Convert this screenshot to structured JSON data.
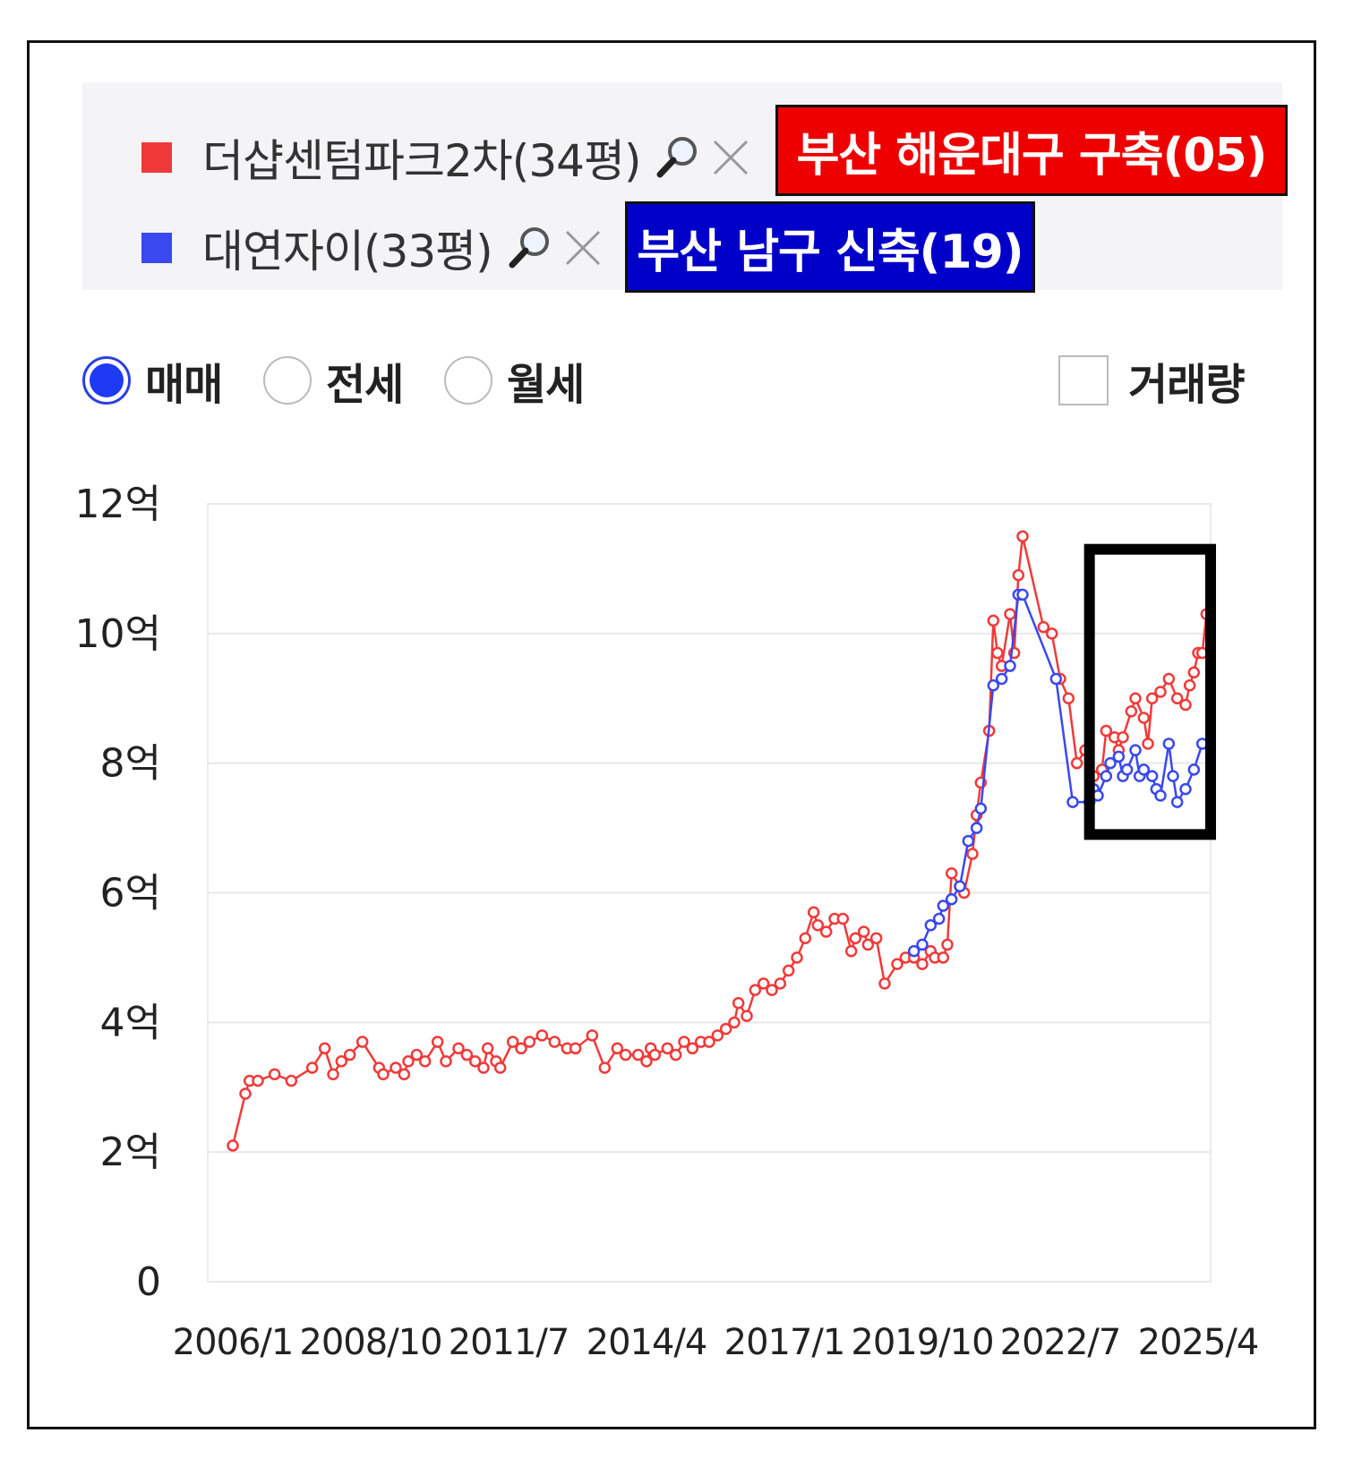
{
  "legend": {
    "items": [
      {
        "label": "더샵센텀파크2차(34평)",
        "color": "#f03a3a",
        "search_icon": "magnifier-icon",
        "remove_icon": "close-icon",
        "tag": "부산 해운대구 구축(05)",
        "tag_color": "#ee0000"
      },
      {
        "label": "대연자이(33평)",
        "color": "#3a48f0",
        "search_icon": "magnifier-icon",
        "remove_icon": "close-icon",
        "tag": "부산 남구 신축(19)",
        "tag_color": "#0000c8"
      }
    ]
  },
  "options": {
    "trade_types": [
      {
        "label": "매매",
        "selected": true
      },
      {
        "label": "전세",
        "selected": false
      },
      {
        "label": "월세",
        "selected": false
      }
    ],
    "volume": {
      "label": "거래량",
      "checked": false
    }
  },
  "chart_data": {
    "type": "line",
    "title": "",
    "xlabel": "",
    "ylabel": "",
    "x_ticks": [
      "2006/1",
      "2008/10",
      "2011/7",
      "2014/4",
      "2017/1",
      "2019/10",
      "2022/7",
      "2025/4"
    ],
    "y_ticks": [
      "0",
      "2억",
      "4억",
      "6억",
      "8억",
      "10억",
      "12억"
    ],
    "ylim": [
      0,
      12
    ],
    "y_unit": "억",
    "grid": true,
    "x_range": [
      "2005/7",
      "2025/7"
    ],
    "highlight_box": {
      "x_from": "2023/2",
      "x_to": "2025/7",
      "y_from": 6.9,
      "y_to": 11.3
    },
    "series": [
      {
        "name": "더샵센텀파크2차(34평)",
        "color": "#f03a3a",
        "points": [
          [
            "2006/1",
            2.1
          ],
          [
            "2006/4",
            2.9
          ],
          [
            "2006/5",
            3.1
          ],
          [
            "2006/7",
            3.1
          ],
          [
            "2006/11",
            3.2
          ],
          [
            "2007/3",
            3.1
          ],
          [
            "2007/8",
            3.3
          ],
          [
            "2007/11",
            3.6
          ],
          [
            "2008/1",
            3.2
          ],
          [
            "2008/3",
            3.4
          ],
          [
            "2008/5",
            3.5
          ],
          [
            "2008/8",
            3.7
          ],
          [
            "2008/12",
            3.3
          ],
          [
            "2009/1",
            3.2
          ],
          [
            "2009/4",
            3.3
          ],
          [
            "2009/6",
            3.2
          ],
          [
            "2009/7",
            3.4
          ],
          [
            "2009/9",
            3.5
          ],
          [
            "2009/11",
            3.4
          ],
          [
            "2010/2",
            3.7
          ],
          [
            "2010/4",
            3.4
          ],
          [
            "2010/7",
            3.6
          ],
          [
            "2010/9",
            3.5
          ],
          [
            "2010/11",
            3.4
          ],
          [
            "2011/1",
            3.3
          ],
          [
            "2011/2",
            3.6
          ],
          [
            "2011/4",
            3.4
          ],
          [
            "2011/5",
            3.3
          ],
          [
            "2011/8",
            3.7
          ],
          [
            "2011/10",
            3.6
          ],
          [
            "2011/12",
            3.7
          ],
          [
            "2012/3",
            3.8
          ],
          [
            "2012/6",
            3.7
          ],
          [
            "2012/9",
            3.6
          ],
          [
            "2012/11",
            3.6
          ],
          [
            "2013/3",
            3.8
          ],
          [
            "2013/6",
            3.3
          ],
          [
            "2013/9",
            3.6
          ],
          [
            "2013/11",
            3.5
          ],
          [
            "2014/2",
            3.5
          ],
          [
            "2014/4",
            3.4
          ],
          [
            "2014/5",
            3.6
          ],
          [
            "2014/6",
            3.5
          ],
          [
            "2014/9",
            3.6
          ],
          [
            "2014/11",
            3.5
          ],
          [
            "2015/1",
            3.7
          ],
          [
            "2015/3",
            3.6
          ],
          [
            "2015/5",
            3.7
          ],
          [
            "2015/7",
            3.7
          ],
          [
            "2015/9",
            3.8
          ],
          [
            "2015/11",
            3.9
          ],
          [
            "2016/1",
            4.0
          ],
          [
            "2016/2",
            4.3
          ],
          [
            "2016/4",
            4.1
          ],
          [
            "2016/6",
            4.5
          ],
          [
            "2016/8",
            4.6
          ],
          [
            "2016/10",
            4.5
          ],
          [
            "2016/12",
            4.6
          ],
          [
            "2017/2",
            4.8
          ],
          [
            "2017/4",
            5.0
          ],
          [
            "2017/6",
            5.3
          ],
          [
            "2017/8",
            5.7
          ],
          [
            "2017/9",
            5.5
          ],
          [
            "2017/11",
            5.4
          ],
          [
            "2018/1",
            5.6
          ],
          [
            "2018/3",
            5.6
          ],
          [
            "2018/5",
            5.1
          ],
          [
            "2018/6",
            5.3
          ],
          [
            "2018/8",
            5.4
          ],
          [
            "2018/9",
            5.2
          ],
          [
            "2018/11",
            5.3
          ],
          [
            "2019/1",
            4.6
          ],
          [
            "2019/4",
            4.9
          ],
          [
            "2019/6",
            5.0
          ],
          [
            "2019/8",
            5.0
          ],
          [
            "2019/10",
            4.9
          ],
          [
            "2019/12",
            5.1
          ],
          [
            "2020/1",
            5.0
          ],
          [
            "2020/3",
            5.0
          ],
          [
            "2020/4",
            5.2
          ],
          [
            "2020/5",
            6.3
          ],
          [
            "2020/7",
            6.1
          ],
          [
            "2020/8",
            6.0
          ],
          [
            "2020/10",
            6.6
          ],
          [
            "2020/11",
            7.2
          ],
          [
            "2020/12",
            7.7
          ],
          [
            "2021/2",
            8.5
          ],
          [
            "2021/3",
            10.2
          ],
          [
            "2021/4",
            9.7
          ],
          [
            "2021/5",
            9.5
          ],
          [
            "2021/7",
            10.3
          ],
          [
            "2021/8",
            9.7
          ],
          [
            "2021/9",
            10.9
          ],
          [
            "2021/10",
            11.5
          ],
          [
            "2022/3",
            10.1
          ],
          [
            "2022/5",
            10.0
          ],
          [
            "2022/7",
            9.3
          ],
          [
            "2022/9",
            9.0
          ],
          [
            "2022/11",
            8.0
          ],
          [
            "2023/1",
            8.2
          ],
          [
            "2023/3",
            7.8
          ],
          [
            "2023/5",
            7.9
          ],
          [
            "2023/6",
            8.5
          ],
          [
            "2023/8",
            8.4
          ],
          [
            "2023/9",
            8.2
          ],
          [
            "2023/10",
            8.4
          ],
          [
            "2023/12",
            8.8
          ],
          [
            "2024/1",
            9.0
          ],
          [
            "2024/3",
            8.7
          ],
          [
            "2024/4",
            8.3
          ],
          [
            "2024/5",
            9.0
          ],
          [
            "2024/7",
            9.1
          ],
          [
            "2024/9",
            9.3
          ],
          [
            "2024/11",
            9.0
          ],
          [
            "2025/1",
            8.9
          ],
          [
            "2025/2",
            9.2
          ],
          [
            "2025/3",
            9.4
          ],
          [
            "2025/4",
            9.7
          ],
          [
            "2025/5",
            9.7
          ],
          [
            "2025/6",
            10.3
          ]
        ]
      },
      {
        "name": "대연자이(33평)",
        "color": "#3a48f0",
        "points": [
          [
            "2019/8",
            5.1
          ],
          [
            "2019/10",
            5.2
          ],
          [
            "2019/12",
            5.5
          ],
          [
            "2020/2",
            5.6
          ],
          [
            "2020/3",
            5.8
          ],
          [
            "2020/5",
            5.9
          ],
          [
            "2020/7",
            6.1
          ],
          [
            "2020/9",
            6.8
          ],
          [
            "2020/11",
            7.0
          ],
          [
            "2020/12",
            7.3
          ],
          [
            "2021/3",
            9.2
          ],
          [
            "2021/5",
            9.3
          ],
          [
            "2021/7",
            9.5
          ],
          [
            "2021/9",
            10.6
          ],
          [
            "2021/10",
            10.6
          ],
          [
            "2022/6",
            9.3
          ],
          [
            "2022/10",
            7.4
          ],
          [
            "2023/2",
            7.4
          ],
          [
            "2023/3",
            7.6
          ],
          [
            "2023/4",
            7.5
          ],
          [
            "2023/6",
            7.8
          ],
          [
            "2023/7",
            8.0
          ],
          [
            "2023/9",
            8.1
          ],
          [
            "2023/10",
            7.8
          ],
          [
            "2023/11",
            7.9
          ],
          [
            "2024/1",
            8.2
          ],
          [
            "2024/2",
            7.8
          ],
          [
            "2024/3",
            7.9
          ],
          [
            "2024/5",
            7.8
          ],
          [
            "2024/6",
            7.6
          ],
          [
            "2024/7",
            7.5
          ],
          [
            "2024/9",
            8.3
          ],
          [
            "2024/10",
            7.8
          ],
          [
            "2024/11",
            7.4
          ],
          [
            "2025/1",
            7.6
          ],
          [
            "2025/3",
            7.9
          ],
          [
            "2025/5",
            8.3
          ]
        ]
      }
    ]
  }
}
